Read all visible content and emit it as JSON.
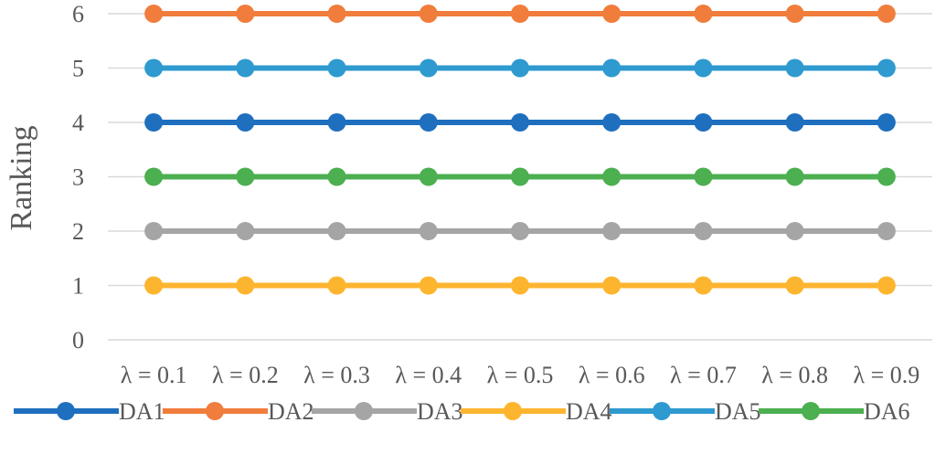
{
  "chart_data": {
    "type": "line",
    "title": "",
    "xlabel": "",
    "ylabel": "Ranking",
    "categories": [
      "λ = 0.1",
      "λ = 0.2",
      "λ = 0.3",
      "λ = 0.4",
      "λ = 0.5",
      "λ = 0.6",
      "λ = 0.7",
      "λ = 0.8",
      "λ = 0.9"
    ],
    "ylim": [
      0,
      6
    ],
    "yticks": [
      "0",
      "1",
      "2",
      "3",
      "4",
      "5",
      "6"
    ],
    "grid": true,
    "legend_position": "bottom",
    "series": [
      {
        "name": "DA1",
        "color": "#1F6FBF",
        "values": [
          4,
          4,
          4,
          4,
          4,
          4,
          4,
          4,
          4
        ]
      },
      {
        "name": "DA2",
        "color": "#F07D3C",
        "values": [
          6,
          6,
          6,
          6,
          6,
          6,
          6,
          6,
          6
        ]
      },
      {
        "name": "DA3",
        "color": "#A5A5A5",
        "values": [
          2,
          2,
          2,
          2,
          2,
          2,
          2,
          2,
          2
        ]
      },
      {
        "name": "DA4",
        "color": "#FDB52F",
        "values": [
          1,
          1,
          1,
          1,
          1,
          1,
          1,
          1,
          1
        ]
      },
      {
        "name": "DA5",
        "color": "#2E9ACF",
        "values": [
          5,
          5,
          5,
          5,
          5,
          5,
          5,
          5,
          5
        ]
      },
      {
        "name": "DA6",
        "color": "#4CAF50",
        "values": [
          3,
          3,
          3,
          3,
          3,
          3,
          3,
          3,
          3
        ]
      }
    ]
  }
}
